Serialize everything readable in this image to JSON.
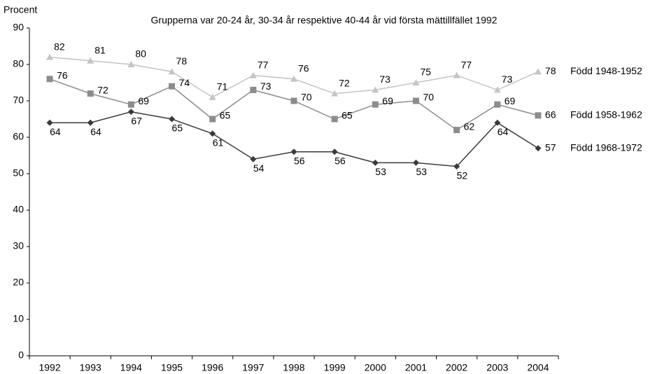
{
  "chart_data": {
    "type": "line",
    "title": "Grupperna var 20-24 år, 30-34 år respektive 40-44 år vid första mättillfället 1992",
    "y_label": "Procent",
    "categories": [
      "1992",
      "1993",
      "1994",
      "1995",
      "1996",
      "1997",
      "1998",
      "1999",
      "2000",
      "2001",
      "2002",
      "2003",
      "2004"
    ],
    "series": [
      {
        "name": "Född 1948-1952",
        "color": "#c4c4c4",
        "marker": "triangle",
        "values": [
          82,
          81,
          80,
          78,
          71,
          77,
          76,
          72,
          73,
          75,
          77,
          73,
          78
        ]
      },
      {
        "name": "Född 1958-1962",
        "color": "#8c8c8c",
        "marker": "square",
        "values": [
          76,
          72,
          69,
          74,
          65,
          73,
          70,
          65,
          69,
          70,
          62,
          69,
          66
        ]
      },
      {
        "name": "Född 1968-1972",
        "color": "#3a3a3a",
        "marker": "diamond",
        "values": [
          64,
          64,
          67,
          65,
          61,
          54,
          56,
          56,
          53,
          53,
          52,
          64,
          57
        ]
      }
    ],
    "ylim": [
      0,
      90
    ],
    "yticks": [
      0,
      10,
      20,
      30,
      40,
      50,
      60,
      70,
      80,
      90
    ],
    "grid": false
  }
}
